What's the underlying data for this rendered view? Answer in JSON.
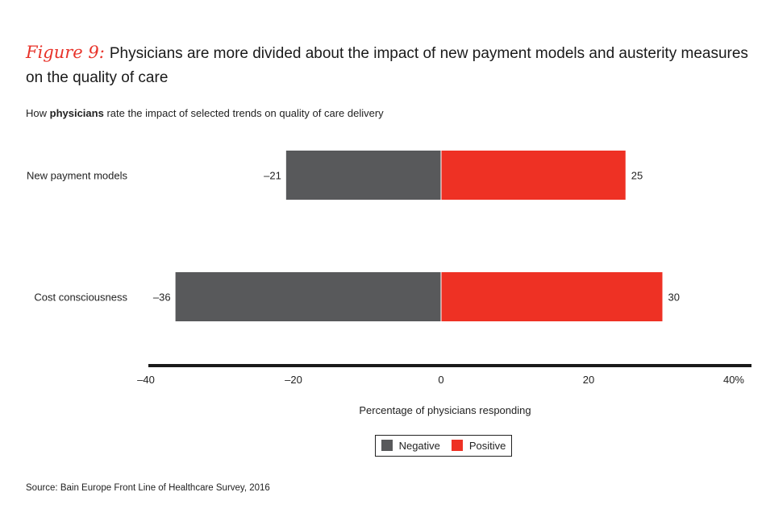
{
  "header": {
    "figure_label": "Figure 9:",
    "title": "Physicians are more divided about the impact of new payment models and austerity measures on the quality of care",
    "subtitle_pre": "How ",
    "subtitle_bold": "physicians",
    "subtitle_post": " rate the impact of selected trends on quality of care delivery"
  },
  "source": "Source: Bain Europe Front Line of Healthcare Survey, 2016",
  "chart_data": {
    "type": "bar",
    "orientation": "horizontal",
    "stacked": "diverging",
    "categories": [
      "New payment models",
      "Cost consciousness"
    ],
    "series": [
      {
        "name": "Negative",
        "values": [
          -21,
          -36
        ],
        "labels": [
          "–21",
          "–36"
        ],
        "color": "#58595b"
      },
      {
        "name": "Positive",
        "values": [
          25,
          30
        ],
        "labels": [
          "25",
          "30"
        ],
        "color": "#ee3124"
      }
    ],
    "xlabel": "Percentage of physicians responding",
    "xlim": [
      -40,
      40
    ],
    "xticks": [
      -40,
      -20,
      0,
      20,
      40
    ],
    "xtick_labels": [
      "–40",
      "–20",
      "0",
      "20",
      "40%"
    ],
    "grid": false,
    "legend": "bottom"
  }
}
